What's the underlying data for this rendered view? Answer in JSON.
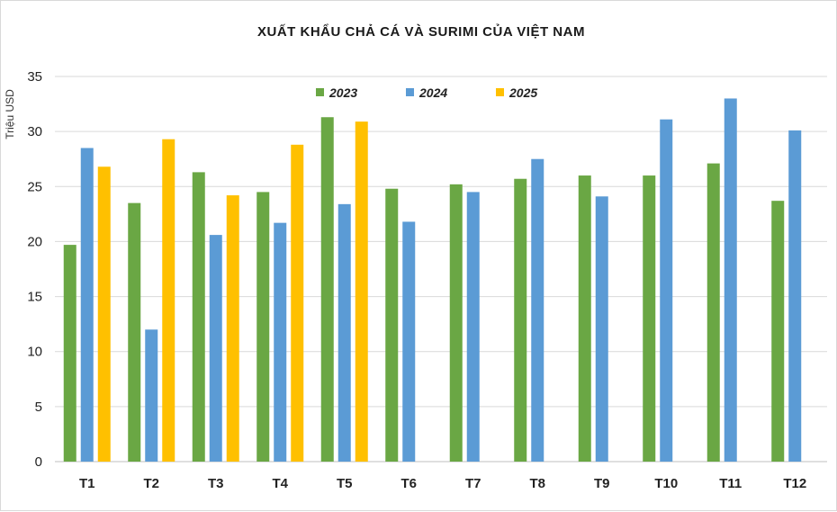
{
  "chart_data": {
    "type": "bar",
    "title": "XUẤT KHẨU CHẢ CÁ VÀ SURIMI CỦA VIỆT NAM",
    "ylabel": "Triệu USD",
    "xlabel": "",
    "ylim": [
      0,
      35
    ],
    "yticks": [
      0,
      5,
      10,
      15,
      20,
      25,
      30,
      35
    ],
    "grid": true,
    "legend_position": "top-center",
    "categories": [
      "T1",
      "T2",
      "T3",
      "T4",
      "T5",
      "T6",
      "T7",
      "T8",
      "T9",
      "T10",
      "T11",
      "T12"
    ],
    "series": [
      {
        "name": "2023",
        "color": "#6aa744",
        "values": [
          19.7,
          23.5,
          26.3,
          24.5,
          31.3,
          24.8,
          25.2,
          25.7,
          26.0,
          26.0,
          27.1,
          23.7
        ]
      },
      {
        "name": "2024",
        "color": "#5b9bd5",
        "values": [
          28.5,
          12.0,
          20.6,
          21.7,
          23.4,
          21.8,
          24.5,
          27.5,
          24.1,
          31.1,
          33.0,
          30.1
        ]
      },
      {
        "name": "2025",
        "color": "#ffc000",
        "values": [
          26.8,
          29.3,
          24.2,
          28.8,
          30.9,
          null,
          null,
          null,
          null,
          null,
          null,
          null
        ]
      }
    ]
  }
}
